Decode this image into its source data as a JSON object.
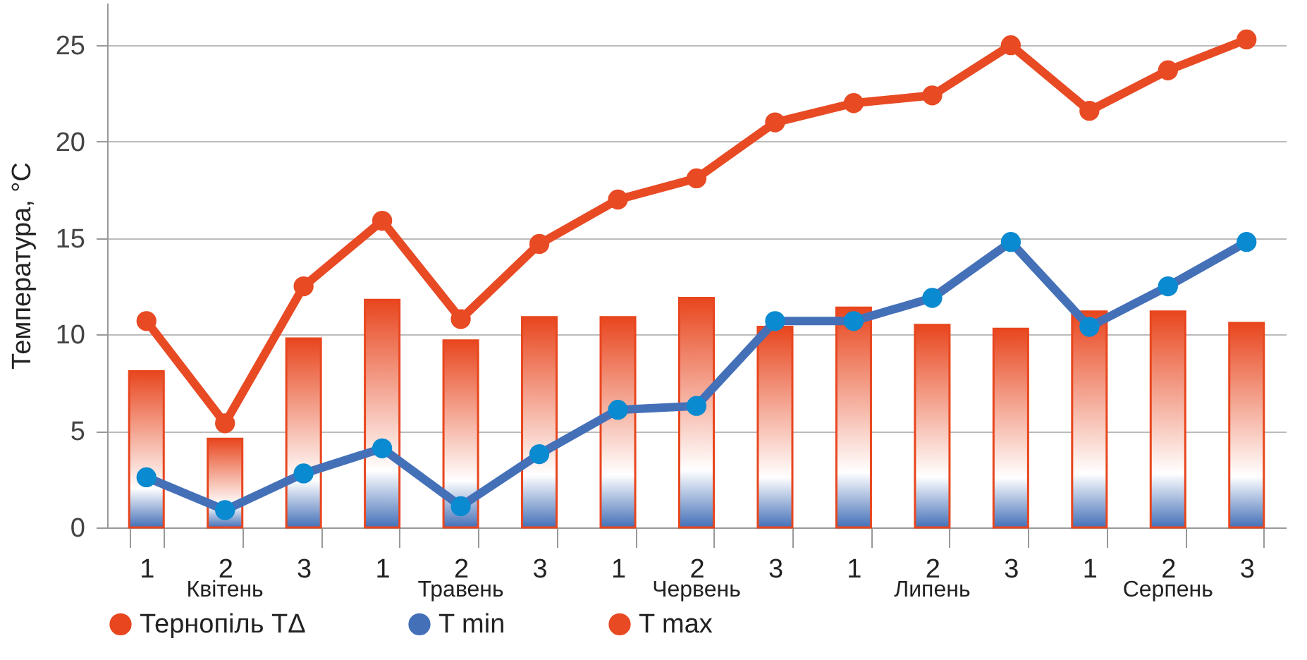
{
  "chart_data": {
    "type": "bar",
    "ylabel": "Температура, °C",
    "categories": [
      "1",
      "2",
      "3",
      "1",
      "2",
      "3",
      "1",
      "2",
      "3",
      "1",
      "2",
      "3",
      "1",
      "2",
      "3"
    ],
    "series": [
      {
        "name": "Тернопіль TΔ",
        "color": "#e8461e",
        "values": [
          8.1,
          4.6,
          9.8,
          11.8,
          9.7,
          10.9,
          10.9,
          11.9,
          10.4,
          11.4,
          10.5,
          10.3,
          11.2,
          11.2,
          10.6
        ]
      },
      {
        "name": "T min",
        "type": "line",
        "color": "#4470b8",
        "values": [
          2.6,
          0.9,
          2.8,
          4.1,
          1.1,
          3.8,
          6.1,
          6.3,
          10.7,
          10.7,
          11.9,
          14.8,
          10.4,
          12.5,
          14.8
        ]
      },
      {
        "name": "T max",
        "type": "line",
        "color": "#e84a24",
        "values": [
          10.7,
          5.4,
          12.5,
          15.9,
          10.8,
          14.7,
          17.0,
          18.1,
          21.0,
          22.0,
          22.4,
          25.0,
          21.6,
          23.7,
          25.3
        ]
      }
    ],
    "annotations": [
      "Квітень",
      "Травень",
      "Червень",
      "Липень",
      "Серпень"
    ],
    "ylim": [
      0,
      27.2
    ],
    "yticks": [
      0,
      5,
      10,
      15,
      20,
      25
    ],
    "grid": "y",
    "legend": "bottom",
    "marker": "circle"
  }
}
